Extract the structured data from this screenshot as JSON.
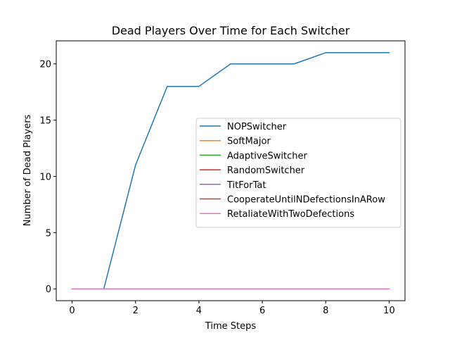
{
  "chart_data": {
    "type": "line",
    "title": "Dead Players Over Time for Each Switcher",
    "xlabel": "Time Steps",
    "ylabel": "Number of Dead Players",
    "xlim": [
      -0.5,
      10.5
    ],
    "ylim": [
      -1.05,
      22.05
    ],
    "xticks": [
      0,
      2,
      4,
      6,
      8,
      10
    ],
    "yticks": [
      0,
      5,
      10,
      15,
      20
    ],
    "grid": false,
    "legend_position": "center-right",
    "x": [
      0,
      1,
      2,
      3,
      4,
      5,
      6,
      7,
      8,
      9,
      10
    ],
    "series": [
      {
        "name": "NOPSwitcher",
        "color": "#1f77b4",
        "values": [
          0,
          0,
          11,
          18,
          18,
          20,
          20,
          20,
          21,
          21,
          21
        ]
      },
      {
        "name": "SoftMajor",
        "color": "#ff7f0e",
        "values": [
          0,
          0,
          0,
          0,
          0,
          0,
          0,
          0,
          0,
          0,
          0
        ]
      },
      {
        "name": "AdaptiveSwitcher",
        "color": "#2ca02c",
        "values": [
          0,
          0,
          0,
          0,
          0,
          0,
          0,
          0,
          0,
          0,
          0
        ]
      },
      {
        "name": "RandomSwitcher",
        "color": "#d62728",
        "values": [
          0,
          0,
          0,
          0,
          0,
          0,
          0,
          0,
          0,
          0,
          0
        ]
      },
      {
        "name": "TitForTat",
        "color": "#9467bd",
        "values": [
          0,
          0,
          0,
          0,
          0,
          0,
          0,
          0,
          0,
          0,
          0
        ]
      },
      {
        "name": "CooperateUntilNDefectionsInARow",
        "color": "#8c564b",
        "values": [
          0,
          0,
          0,
          0,
          0,
          0,
          0,
          0,
          0,
          0,
          0
        ]
      },
      {
        "name": "RetaliateWithTwoDefections",
        "color": "#e377c2",
        "values": [
          0,
          0,
          0,
          0,
          0,
          0,
          0,
          0,
          0,
          0,
          0
        ]
      }
    ]
  }
}
